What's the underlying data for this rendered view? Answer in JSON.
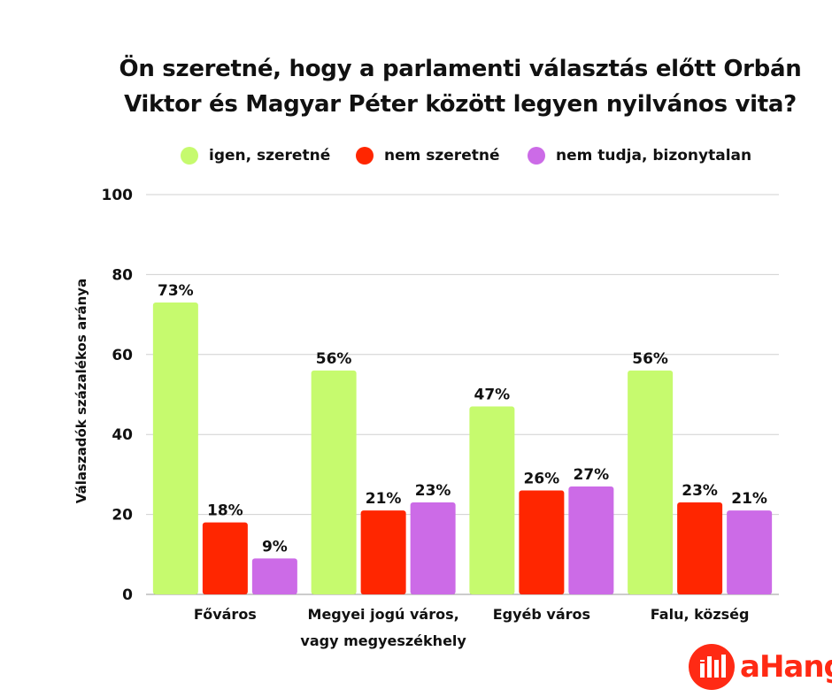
{
  "title_lines": [
    "Ön szeretné, hogy a parlamenti választás előtt Orbán",
    "Viktor és Magyar Péter között legyen nyilvános vita?"
  ],
  "legend": [
    {
      "label": "igen, szeretné",
      "color": "#c6fa6e"
    },
    {
      "label": "nem szeretné",
      "color": "#ff2600"
    },
    {
      "label": "nem tudja, bizonytalan",
      "color": "#cc6be7"
    }
  ],
  "logo": {
    "text": "aHang",
    "icon": "ahang-logo-icon",
    "color": "#ff2a14"
  },
  "chart_data": {
    "type": "bar",
    "title": "Ön szeretné, hogy a parlamenti választás előtt Orbán Viktor és Magyar Péter között legyen nyilvános vita?",
    "ylabel": "Válaszadók százalékos aránya",
    "xlabel": "",
    "ylim": [
      0,
      100
    ],
    "yticks": [
      0,
      20,
      40,
      60,
      80,
      100
    ],
    "grid": true,
    "legend_position": "top",
    "categories": [
      [
        "Főváros"
      ],
      [
        "Megyei jogú város,",
        "vagy megyeszékhely"
      ],
      [
        "Egyéb város"
      ],
      [
        "Falu, község"
      ]
    ],
    "series": [
      {
        "name": "igen, szeretné",
        "color": "#c6fa6e",
        "values": [
          73,
          56,
          47,
          56
        ],
        "labels": [
          "73%",
          "56%",
          "47%",
          "56%"
        ]
      },
      {
        "name": "nem szeretné",
        "color": "#ff2600",
        "values": [
          18,
          21,
          26,
          23
        ],
        "labels": [
          "18%",
          "21%",
          "26%",
          "23%"
        ]
      },
      {
        "name": "nem tudja, bizonytalan",
        "color": "#cc6be7",
        "values": [
          9,
          23,
          27,
          21
        ],
        "labels": [
          "9%",
          "23%",
          "27%",
          "21%"
        ]
      }
    ]
  }
}
